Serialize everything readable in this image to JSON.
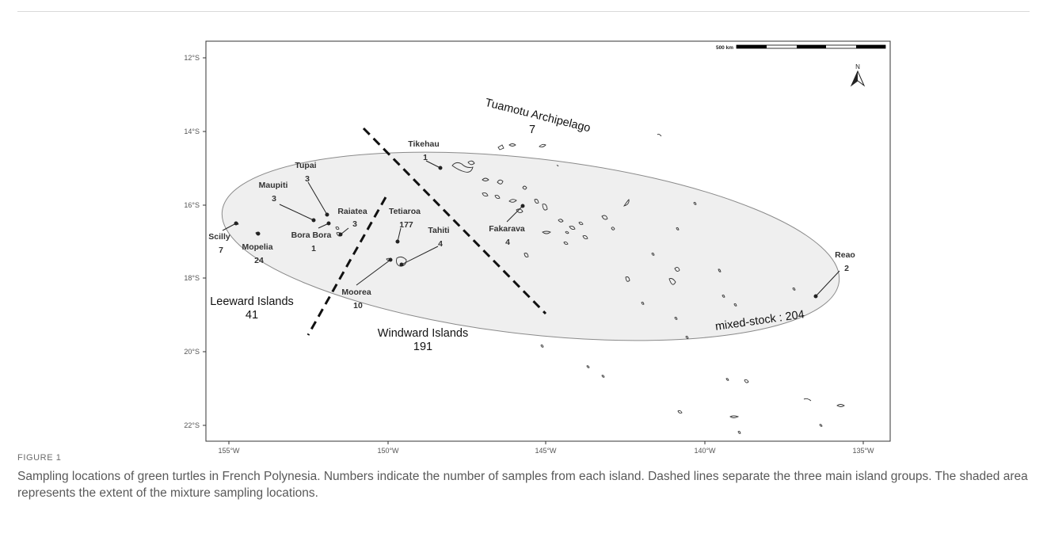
{
  "figure": {
    "label": "FIGURE 1",
    "caption": "Sampling locations of green turtles in French Polynesia. Numbers indicate the number of samples from each island. Dashed lines separate the three main island groups. The shaded area represents the extent of the mixture sampling locations."
  },
  "map": {
    "lat_ticks": [
      "12°S",
      "14°S",
      "16°S",
      "18°S",
      "20°S",
      "22°S"
    ],
    "lon_ticks": [
      "155°W",
      "150°W",
      "145°W",
      "140°W",
      "135°W"
    ],
    "scale_bar": "500 km",
    "north_arrow": "N",
    "mixed_stock": {
      "label": "mixed-stock : 204"
    },
    "groups": [
      {
        "name": "Tuamotu Archipelago",
        "count": "7"
      },
      {
        "name": "Leeward Islands",
        "count": "41"
      },
      {
        "name": "Windward Islands",
        "count": "191"
      }
    ],
    "islands": [
      {
        "name": "Scilly",
        "count": "7"
      },
      {
        "name": "Mopelia",
        "count": "24"
      },
      {
        "name": "Maupiti",
        "count": "3"
      },
      {
        "name": "Tupai",
        "count": "3"
      },
      {
        "name": "Bora Bora",
        "count": "1"
      },
      {
        "name": "Raiatea",
        "count": "3"
      },
      {
        "name": "Tetiaroa",
        "count": "177"
      },
      {
        "name": "Tahiti",
        "count": "4"
      },
      {
        "name": "Moorea",
        "count": "10"
      },
      {
        "name": "Tikehau",
        "count": "1"
      },
      {
        "name": "Fakarava",
        "count": "4"
      },
      {
        "name": "Reao",
        "count": "2"
      }
    ],
    "colors": {
      "ellipse_fill": "#efefef",
      "ellipse_stroke": "#8a8a8a",
      "coast": "#333333",
      "frame": "#333333"
    }
  }
}
